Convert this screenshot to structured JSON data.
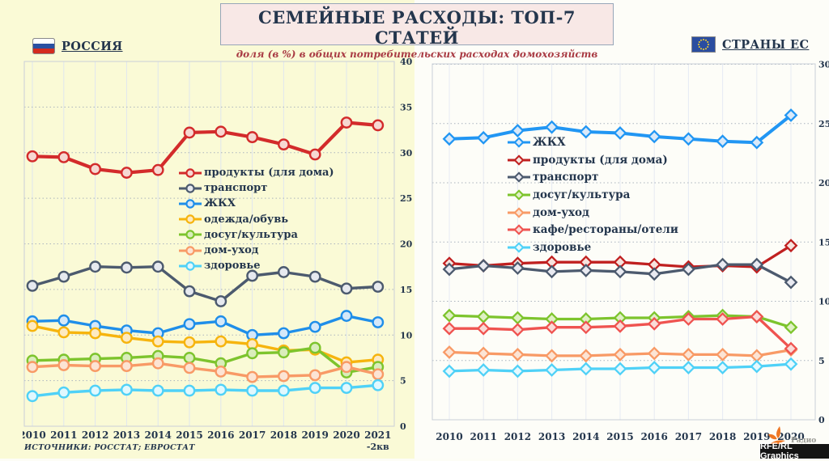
{
  "page": {
    "title": "СЕМЕЙНЫЕ РАСХОДЫ: ТОП-7 СТАТЕЙ",
    "subtitle": "доля (в %) в общих потребительских расходах домохозяйств",
    "left_region_label": "РОССИЯ",
    "right_region_label": "СТРАНЫ ЕС",
    "source": "ИСТОЧНИКИ: РОССТАТ; ЕВРОСТАТ",
    "radio_label": "Радио",
    "credit_badge": "RFE/RL Graphics",
    "colors": {
      "page_left_bg": "#fafad6",
      "page_right_bg": "#fdfdf8",
      "title_box_bg": "#f8e8e6",
      "title_text": "#24364d",
      "subtitle_text": "#a93b44",
      "logo_orange": "#ee7623"
    }
  },
  "chart_data": [
    {
      "id": "russia",
      "type": "line",
      "region": "РОССИЯ",
      "categories": [
        "2010",
        "2011",
        "2012",
        "2013",
        "2014",
        "2015",
        "2016",
        "2017",
        "2018",
        "2019",
        "2020",
        "2021"
      ],
      "last_category_note": "-2кв",
      "ylim": [
        0,
        40
      ],
      "ytick_step": 5,
      "grid": true,
      "legend_position": "inside-upper-left",
      "marker": "circle",
      "series": [
        {
          "name": "продукты (для дома)",
          "color": "#d32b2b",
          "marker_fill": "#f6d8d2",
          "values": [
            29.6,
            29.5,
            28.2,
            27.8,
            28.1,
            32.2,
            32.3,
            31.7,
            30.9,
            29.8,
            33.3,
            33.0
          ]
        },
        {
          "name": "транспорт",
          "color": "#4c5a6e",
          "marker_fill": "#e6e9ef",
          "values": [
            15.4,
            16.4,
            17.5,
            17.4,
            17.5,
            14.8,
            13.7,
            16.5,
            16.9,
            16.4,
            15.1,
            15.3
          ]
        },
        {
          "name": "ЖКХ",
          "color": "#1f8ee9",
          "marker_fill": "#d5e8f9",
          "values": [
            11.5,
            11.6,
            11.0,
            10.5,
            10.2,
            11.2,
            11.5,
            10.0,
            10.2,
            10.9,
            12.1,
            11.4
          ]
        },
        {
          "name": "одежда/обувь",
          "color": "#f6b40e",
          "marker_fill": "#fdeac2",
          "values": [
            11.0,
            10.3,
            10.2,
            9.7,
            9.3,
            9.2,
            9.3,
            9.0,
            8.3,
            8.4,
            7.0,
            7.3
          ]
        },
        {
          "name": "досуг/культура",
          "color": "#7dc42d",
          "marker_fill": "#d9edbb",
          "values": [
            7.2,
            7.3,
            7.4,
            7.5,
            7.7,
            7.5,
            6.9,
            8.0,
            8.1,
            8.6,
            5.9,
            6.5
          ]
        },
        {
          "name": "дом-уход",
          "color": "#f89a66",
          "marker_fill": "#fce4d4",
          "values": [
            6.5,
            6.7,
            6.6,
            6.6,
            6.9,
            6.4,
            6.0,
            5.4,
            5.5,
            5.6,
            6.5,
            5.7
          ]
        },
        {
          "name": "здоровье",
          "color": "#4fd1f7",
          "marker_fill": "#e1f8fe",
          "values": [
            3.3,
            3.7,
            3.9,
            4.0,
            3.9,
            3.9,
            4.0,
            3.9,
            3.9,
            4.2,
            4.2,
            4.5
          ]
        }
      ]
    },
    {
      "id": "eu",
      "type": "line",
      "region": "СТРАНЫ ЕС",
      "categories": [
        "2010",
        "2011",
        "2012",
        "2013",
        "2014",
        "2015",
        "2016",
        "2017",
        "2018",
        "2019",
        "2020"
      ],
      "ylim": [
        0,
        30
      ],
      "ytick_step": 5,
      "grid": true,
      "legend_position": "inside-upper-left",
      "marker": "diamond",
      "series": [
        {
          "name": "ЖКХ",
          "color": "#2196f3",
          "marker_fill": "#d9e9f9",
          "values": [
            23.7,
            23.8,
            24.4,
            24.7,
            24.3,
            24.2,
            23.9,
            23.7,
            23.5,
            23.4,
            25.7
          ]
        },
        {
          "name": "продукты (для дома)",
          "color": "#c02020",
          "marker_fill": "#f7e3dd",
          "values": [
            13.2,
            13.0,
            13.2,
            13.3,
            13.3,
            13.3,
            13.1,
            12.9,
            13.0,
            12.9,
            14.7
          ]
        },
        {
          "name": "транспорт",
          "color": "#4c5a6e",
          "marker_fill": "#e9eaf1",
          "values": [
            12.7,
            13.0,
            12.8,
            12.5,
            12.6,
            12.5,
            12.3,
            12.7,
            13.1,
            13.1,
            11.6
          ]
        },
        {
          "name": "досуг/культура",
          "color": "#7dc42d",
          "marker_fill": "#dff0c4",
          "values": [
            8.8,
            8.7,
            8.6,
            8.5,
            8.5,
            8.6,
            8.6,
            8.7,
            8.8,
            8.7,
            7.8
          ]
        },
        {
          "name": "дом-уход",
          "color": "#f89a66",
          "marker_fill": "#fce4d4",
          "values": [
            5.7,
            5.6,
            5.5,
            5.4,
            5.4,
            5.5,
            5.6,
            5.5,
            5.5,
            5.4,
            5.9
          ]
        },
        {
          "name": "кафе/рестораны/отели",
          "color": "#ef5350",
          "marker_fill": "#fadbd7",
          "values": [
            7.7,
            7.7,
            7.6,
            7.8,
            7.8,
            7.9,
            8.1,
            8.5,
            8.5,
            8.7,
            6.0
          ]
        },
        {
          "name": "здоровье",
          "color": "#4fd1f7",
          "marker_fill": "#e6f9fe",
          "values": [
            4.1,
            4.2,
            4.1,
            4.2,
            4.3,
            4.3,
            4.4,
            4.4,
            4.4,
            4.5,
            4.7
          ]
        }
      ]
    }
  ]
}
